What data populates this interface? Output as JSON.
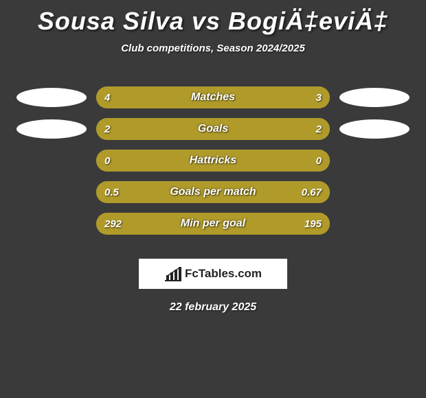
{
  "title": "Sousa Silva vs BogiÄ‡eviÄ‡",
  "subtitle": "Club competitions, Season 2024/2025",
  "date": "22 february 2025",
  "brand": "FcTables.com",
  "colors": {
    "background": "#3a3a3a",
    "text": "#ffffff",
    "left_fill": "#b09b2a",
    "right_fill": "#b09b2a",
    "ellipse_left_row1": "#ffffff",
    "ellipse_right_row1": "#ffffff",
    "ellipse_left_row2": "#ffffff",
    "ellipse_right_row2": "#ffffff",
    "brand_box_bg": "#ffffff",
    "brand_text": "#222222"
  },
  "bars": [
    {
      "label": "Matches",
      "left_value": "4",
      "right_value": "3",
      "left_pct": 57,
      "right_pct": 43,
      "left_color": "#b09b2a",
      "right_color": "#b09b2a",
      "show_ellipses": true
    },
    {
      "label": "Goals",
      "left_value": "2",
      "right_value": "2",
      "left_pct": 50,
      "right_pct": 50,
      "left_color": "#b09b2a",
      "right_color": "#b09b2a",
      "show_ellipses": true
    },
    {
      "label": "Hattricks",
      "left_value": "0",
      "right_value": "0",
      "left_pct": 50,
      "right_pct": 50,
      "left_color": "#b09b2a",
      "right_color": "#b09b2a",
      "show_ellipses": false
    },
    {
      "label": "Goals per match",
      "left_value": "0.5",
      "right_value": "0.67",
      "left_pct": 43,
      "right_pct": 57,
      "left_color": "#b09b2a",
      "right_color": "#b09b2a",
      "show_ellipses": false
    },
    {
      "label": "Min per goal",
      "left_value": "292",
      "right_value": "195",
      "left_pct": 60,
      "right_pct": 40,
      "left_color": "#b09b2a",
      "right_color": "#b09b2a",
      "show_ellipses": false
    }
  ]
}
